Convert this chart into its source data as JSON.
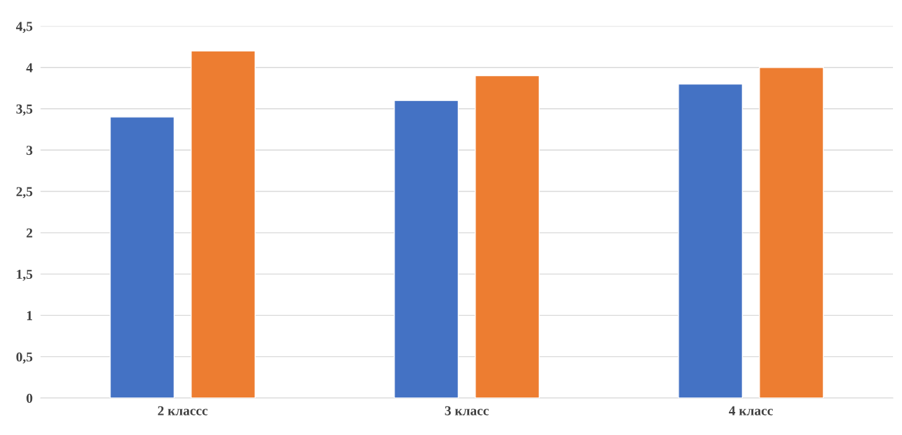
{
  "chart_data": {
    "type": "bar",
    "categories": [
      "2 классс",
      "3 класс",
      "4 класс"
    ],
    "series": [
      {
        "color": "#4472c4",
        "values": [
          3.4,
          3.6,
          3.8
        ]
      },
      {
        "color": "#ed7d31",
        "values": [
          4.2,
          3.9,
          4.0
        ]
      }
    ],
    "ylim": [
      0,
      4.5
    ],
    "yticks": [
      {
        "value": 0,
        "label": "0"
      },
      {
        "value": 0.5,
        "label": "0,5"
      },
      {
        "value": 1,
        "label": "1"
      },
      {
        "value": 1.5,
        "label": "1,5"
      },
      {
        "value": 2,
        "label": "2"
      },
      {
        "value": 2.5,
        "label": "2,5"
      },
      {
        "value": 3,
        "label": "3"
      },
      {
        "value": 3.5,
        "label": "3,5"
      },
      {
        "value": 4,
        "label": "4"
      },
      {
        "value": 4.5,
        "label": "4,5"
      }
    ],
    "grid": "y"
  }
}
